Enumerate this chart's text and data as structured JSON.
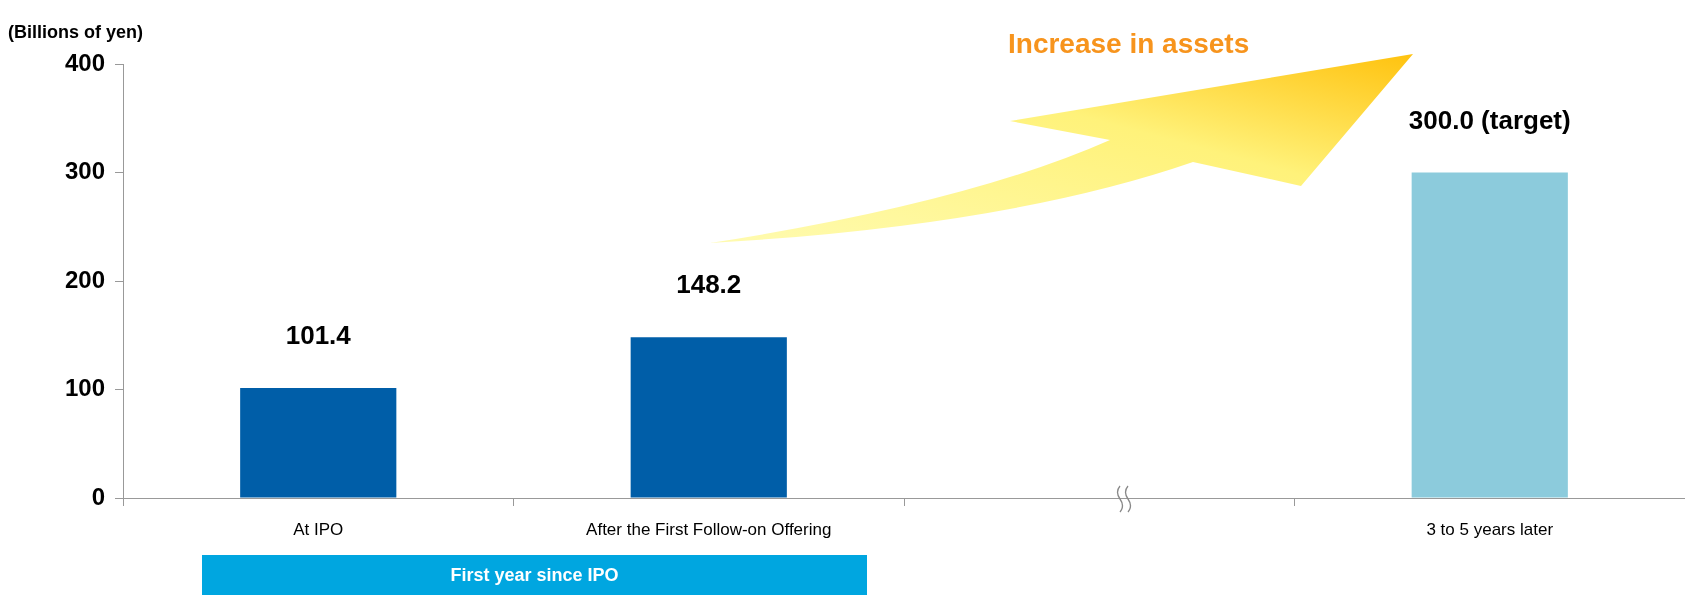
{
  "chart_data": {
    "type": "bar",
    "ylabel": "(Billions of yen)",
    "categories": [
      "At IPO",
      "After the First Follow-on Offering",
      null,
      "3 to 5 years later"
    ],
    "values": [
      101.4,
      148.2,
      null,
      300.0
    ],
    "colors": [
      "#005ea8",
      "#005ea8",
      "#005ea8",
      "#8ccbdc"
    ],
    "value_labels": [
      "101.4",
      "148.2",
      null,
      "300.0 (target)"
    ],
    "ylim": [
      0,
      400
    ],
    "yticks": [
      0,
      100,
      200,
      300,
      400
    ],
    "grid": false,
    "legend": false,
    "annotations": [
      "Increase in assets",
      "First year since IPO"
    ]
  }
}
